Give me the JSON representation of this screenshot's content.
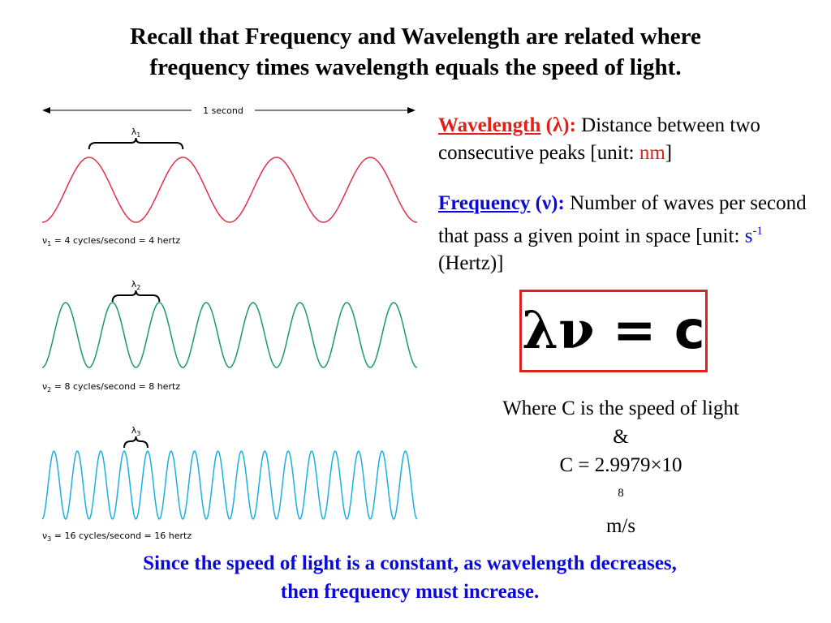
{
  "title": {
    "line1": "Recall that Frequency and Wavelength are related where",
    "line2": "frequency times wavelength equals the speed of light."
  },
  "diagram": {
    "time_label": "1 second",
    "waves": [
      {
        "cycles_per_second": 4,
        "color": "#e0304a",
        "lambda_symbol": "λ",
        "lambda_sub": "1",
        "nu_symbol": "ν",
        "nu_sub": "1",
        "label_rest": " = 4 cycles/second = 4 hertz"
      },
      {
        "cycles_per_second": 8,
        "color": "#1a9a6a",
        "lambda_symbol": "λ",
        "lambda_sub": "2",
        "nu_symbol": "ν",
        "nu_sub": "2",
        "label_rest": " = 8 cycles/second = 8 hertz"
      },
      {
        "cycles_per_second": 16,
        "color": "#1ab0e0",
        "lambda_symbol": "λ",
        "lambda_sub": "3",
        "nu_symbol": "ν",
        "nu_sub": "3",
        "label_rest": " = 16 cycles/second = 16 hertz"
      }
    ]
  },
  "wavelength": {
    "term": "Wavelength",
    "symbol": "(λ):",
    "desc": " Distance between two consecutive peaks [unit: ",
    "unit": "nm",
    "close": "]"
  },
  "frequency": {
    "term": "Frequency",
    "symbol": "(ν):",
    "desc": " Number of waves per second that pass a given point in space [unit: ",
    "unit": "s",
    "unit_sup": "-1",
    "close": " (Hertz)]"
  },
  "equation": {
    "lambda": "λ",
    "nu": "ν",
    "equals": " = ",
    "c": "c"
  },
  "speed": {
    "line1": "Where C is the speed of light",
    "line2": "&",
    "line3_prefix": "C = 2.9979×10",
    "line3_sup": "8",
    "line3_suffix": " m/s"
  },
  "conclusion": {
    "line1": "Since the speed of light is a constant, as wavelength decreases,",
    "line2": "then frequency must increase."
  },
  "colors": {
    "red": "#e0201a",
    "blue": "#0a0ad8"
  }
}
